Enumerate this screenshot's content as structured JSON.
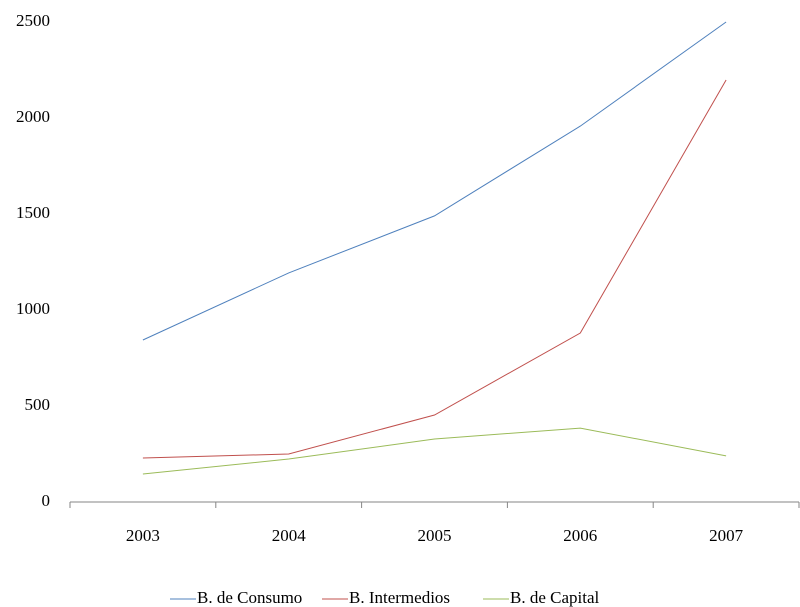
{
  "chart_data": {
    "type": "line",
    "categories": [
      "2003",
      "2004",
      "2005",
      "2006",
      "2007"
    ],
    "series": [
      {
        "name": "B. de Consumo",
        "color": "#4f81bd",
        "values": [
          844,
          1193,
          1490,
          1958,
          2500
        ]
      },
      {
        "name": "B. Intermedios",
        "color": "#c0504d",
        "values": [
          229,
          250,
          453,
          880,
          2198
        ]
      },
      {
        "name": "B. de Capital",
        "color": "#9bbb59",
        "values": [
          146,
          224,
          328,
          385,
          240
        ]
      }
    ],
    "ylim": [
      0,
      2500
    ],
    "yticks": [
      0,
      500,
      1000,
      1500,
      2000,
      2500
    ],
    "grid": false,
    "legend": "bottom"
  }
}
